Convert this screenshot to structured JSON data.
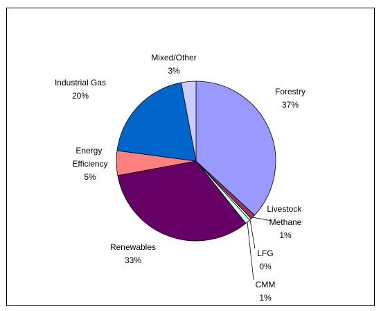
{
  "chart_data": {
    "type": "pie",
    "categories": [
      "Forestry",
      "Livestock Methane",
      "LFG",
      "CMM",
      "Renewables",
      "Energy Efficiency",
      "Industrial Gas",
      "Mixed/Other"
    ],
    "values": [
      37,
      1,
      0.4,
      1,
      33,
      5,
      20,
      3
    ],
    "value_labels": [
      "37%",
      "1%",
      "0%",
      "1%",
      "33%",
      "5%",
      "20%",
      "3%"
    ],
    "colors": [
      "#9999ff",
      "#993366",
      "#ffffcc",
      "#ccffff",
      "#660066",
      "#ff8080",
      "#0066cc",
      "#ccccff"
    ],
    "start_angle": 90,
    "direction": "clockwise"
  }
}
